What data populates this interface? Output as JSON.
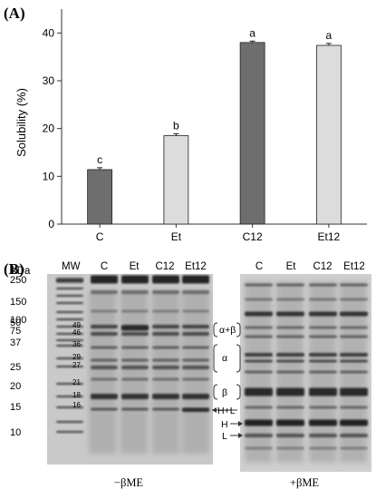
{
  "panel_a_label": "(A)",
  "panel_b_label": "(B)",
  "chart_data": {
    "type": "bar",
    "categories": [
      "C",
      "Et",
      "C12",
      "Et12"
    ],
    "values": [
      11.4,
      18.5,
      38.0,
      37.4
    ],
    "errors": [
      0.4,
      0.4,
      0.3,
      0.4
    ],
    "significance_letters": [
      "c",
      "b",
      "a",
      "a"
    ],
    "bar_colors": [
      "#6e6e6e",
      "#dcdcdc",
      "#6e6e6e",
      "#dcdcdc"
    ],
    "ylabel": "Solubility (%)",
    "xlabel": "",
    "ylim": [
      0,
      45
    ],
    "yticks": [
      0,
      10,
      20,
      30,
      40
    ],
    "grid": false
  },
  "gel": {
    "kda_label": "kDa",
    "mw_label": "MW",
    "left_lanes": [
      "C",
      "Et",
      "C12",
      "Et12"
    ],
    "right_lanes": [
      "C",
      "Et",
      "C12",
      "Et12"
    ],
    "mw_markers": [
      "250",
      "150",
      "100",
      "75",
      "50",
      "37",
      "25",
      "20",
      "15",
      "10"
    ],
    "inner_markers": [
      "49",
      "46",
      "36",
      "29",
      "27",
      "21",
      "18",
      "16"
    ],
    "annotations": {
      "alpha_beta": "α+β",
      "alpha": "α",
      "beta": "β",
      "hl": "H+L",
      "h": "H",
      "l": "L"
    },
    "left_caption": "−βME",
    "right_caption": "+βME"
  }
}
